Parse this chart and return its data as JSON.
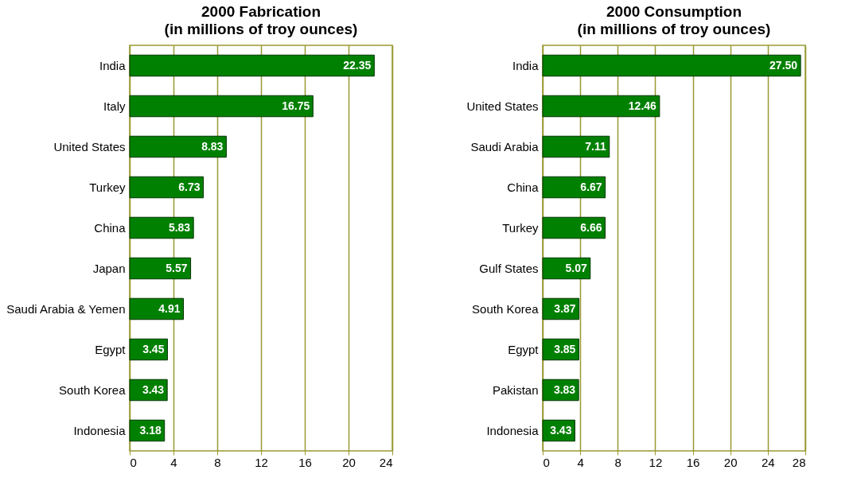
{
  "chart_data": [
    {
      "type": "bar",
      "orientation": "horizontal",
      "title": "2000 Fabrication",
      "subtitle": "(in millions of troy ounces)",
      "categories": [
        "India",
        "Italy",
        "United States",
        "Turkey",
        "China",
        "Japan",
        "Saudi Arabia & Yemen",
        "Egypt",
        "South Korea",
        "Indonesia"
      ],
      "values": [
        22.35,
        16.75,
        8.83,
        6.73,
        5.83,
        5.57,
        4.91,
        3.45,
        3.43,
        3.18
      ],
      "value_labels": [
        "22.35",
        "16.75",
        "8.83",
        "6.73",
        "5.83",
        "5.57",
        "4.91",
        "3.45",
        "3.43",
        "3.18"
      ],
      "color": "#008000",
      "xlim": [
        0,
        24
      ],
      "xticks": [
        0,
        4,
        8,
        12,
        16,
        20,
        24
      ],
      "grid": "x"
    },
    {
      "type": "bar",
      "orientation": "horizontal",
      "title": "2000 Consumption",
      "subtitle": "(in millions of troy ounces)",
      "categories": [
        "India",
        "United States",
        "Saudi Arabia",
        "China",
        "Turkey",
        "Gulf States",
        "South Korea",
        "Egypt",
        "Pakistan",
        "Indonesia"
      ],
      "values": [
        27.5,
        12.46,
        7.11,
        6.67,
        6.66,
        5.07,
        3.87,
        3.85,
        3.83,
        3.43
      ],
      "value_labels": [
        "27.50",
        "12.46",
        "7.11",
        "6.67",
        "6.66",
        "5.07",
        "3.87",
        "3.85",
        "3.83",
        "3.43"
      ],
      "color": "#008000",
      "xlim": [
        0,
        28
      ],
      "xticks": [
        0,
        4,
        8,
        12,
        16,
        20,
        24,
        28
      ],
      "grid": "x"
    }
  ]
}
